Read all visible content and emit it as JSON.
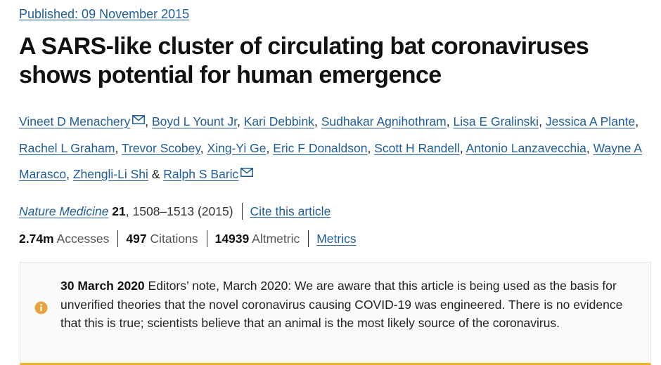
{
  "published": "Published: 09 November 2015",
  "title": "A SARS-like cluster of circulating bat coronaviruses shows potential for human emergence",
  "authors": [
    "Vineet D Menachery",
    "Boyd L Yount Jr",
    "Kari Debbink",
    "Sudhakar Agnihothram",
    "Lisa E Gralinski",
    "Jessica A Plante",
    "Rachel L Graham",
    "Trevor Scobey",
    "Xing-Yi Ge",
    "Eric F Donaldson",
    "Scott H Randell",
    "Antonio Lanzavecchia",
    "Wayne A Marasco",
    "Zhengli-Li Shi",
    "Ralph S Baric"
  ],
  "author_separator": ",",
  "author_last_separator": "&",
  "citation": {
    "journal": "Nature Medicine",
    "volume": "21",
    "pages_year": ", 1508–1513 (2015)",
    "cite_link": "Cite this article"
  },
  "metrics": {
    "accesses_value": "2.74m",
    "accesses_label": "Accesses",
    "citations_value": "497",
    "citations_label": "Citations",
    "altmetric_value": "14939",
    "altmetric_label": "Altmetric",
    "metrics_link": "Metrics"
  },
  "editors_note": {
    "date": "30 March 2020",
    "text": " Editors’ note, March 2020: We are aware that this article is being used as the basis for unverified theories that the novel coronavirus causing COVID-19 was engineered. There is no evidence that this is true; scientists believe that an animal is the most likely source of the coronavirus."
  },
  "colors": {
    "link": "#1f5d9b",
    "note_border": "#f0b429",
    "info_icon": "#e7a33e"
  },
  "icons": {
    "corresponding_author": "envelope-icon",
    "note": "info-icon"
  }
}
